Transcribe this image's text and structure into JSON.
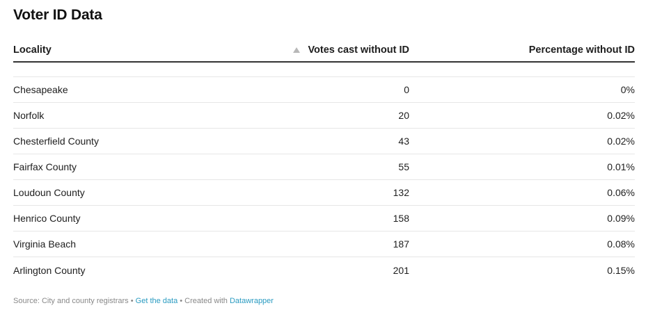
{
  "title": "Voter ID Data",
  "table": {
    "headers": [
      "Locality",
      "Votes cast without ID",
      "Percentage without ID"
    ],
    "sort_icon": "sort-ascending-icon",
    "rows": [
      {
        "locality": "Chesapeake",
        "votes": "0",
        "pct": "0%"
      },
      {
        "locality": "Norfolk",
        "votes": "20",
        "pct": "0.02%"
      },
      {
        "locality": "Chesterfield County",
        "votes": "43",
        "pct": "0.02%"
      },
      {
        "locality": "Fairfax County",
        "votes": "55",
        "pct": "0.01%"
      },
      {
        "locality": "Loudoun County",
        "votes": "132",
        "pct": "0.06%"
      },
      {
        "locality": "Henrico County",
        "votes": "158",
        "pct": "0.09%"
      },
      {
        "locality": "Virginia Beach",
        "votes": "187",
        "pct": "0.08%"
      },
      {
        "locality": "Arlington County",
        "votes": "201",
        "pct": "0.15%"
      }
    ]
  },
  "footer": {
    "source": "Source: City and county registrars",
    "sep": " • ",
    "get_data": "Get the data",
    "created_with": "Created with ",
    "tool": "Datawrapper"
  },
  "colors": {
    "link": "#2a9bc1",
    "header_rule": "#333333",
    "row_rule": "#e6e6e6"
  },
  "chart_data": {
    "type": "table",
    "title": "Voter ID Data",
    "columns": [
      "Locality",
      "Votes cast without ID",
      "Percentage without ID"
    ],
    "rows": [
      [
        "Chesapeake",
        0,
        "0%"
      ],
      [
        "Norfolk",
        20,
        "0.02%"
      ],
      [
        "Chesterfield County",
        43,
        "0.02%"
      ],
      [
        "Fairfax County",
        55,
        "0.01%"
      ],
      [
        "Loudoun County",
        132,
        "0.06%"
      ],
      [
        "Henrico County",
        158,
        "0.09%"
      ],
      [
        "Virginia Beach",
        187,
        "0.08%"
      ],
      [
        "Arlington County",
        201,
        "0.15%"
      ]
    ],
    "sorted_by": "Votes cast without ID",
    "sort_order": "ascending",
    "source": "City and county registrars"
  }
}
